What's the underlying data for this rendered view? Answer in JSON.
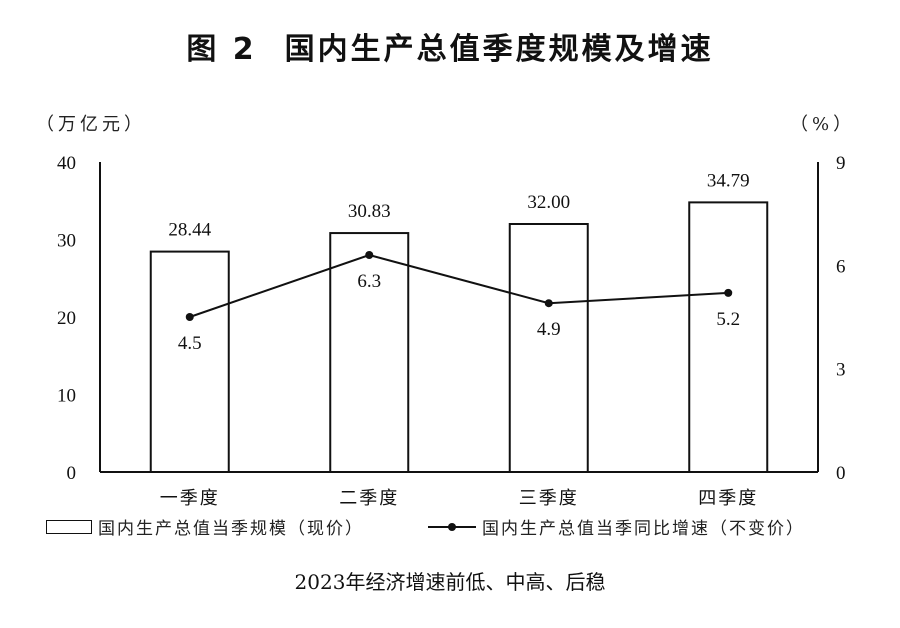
{
  "chart_data": {
    "type": "bar+line",
    "title_prefix": "图 2",
    "title": "国内生产总值季度规模及增速",
    "subtitle": "2023年经济增速前低、中高、后稳",
    "categories": [
      "一季度",
      "二季度",
      "三季度",
      "四季度"
    ],
    "series": [
      {
        "name": "国内生产总值当季规模（现价）",
        "type": "bar",
        "axis": "left",
        "values": [
          28.44,
          30.83,
          32.0,
          34.79
        ],
        "labels": [
          "28.44",
          "30.83",
          "32.00",
          "34.79"
        ]
      },
      {
        "name": "国内生产总值当季同比增速（不变价）",
        "type": "line",
        "axis": "right",
        "values": [
          4.5,
          6.3,
          4.9,
          5.2
        ],
        "labels": [
          "4.5",
          "6.3",
          "4.9",
          "5.2"
        ]
      }
    ],
    "left_axis": {
      "unit": "（万亿元）",
      "ylim": [
        0,
        40
      ],
      "ticks": [
        "0",
        "10",
        "20",
        "30",
        "40"
      ]
    },
    "right_axis": {
      "unit": "（%）",
      "ylim": [
        0,
        9
      ],
      "ticks": [
        "0",
        "3",
        "6",
        "9"
      ]
    },
    "grid": false,
    "legend_placement": "bottom",
    "colors": {
      "bar_fill": "#ffffff",
      "bar_stroke": "#111111",
      "line": "#111111"
    }
  }
}
